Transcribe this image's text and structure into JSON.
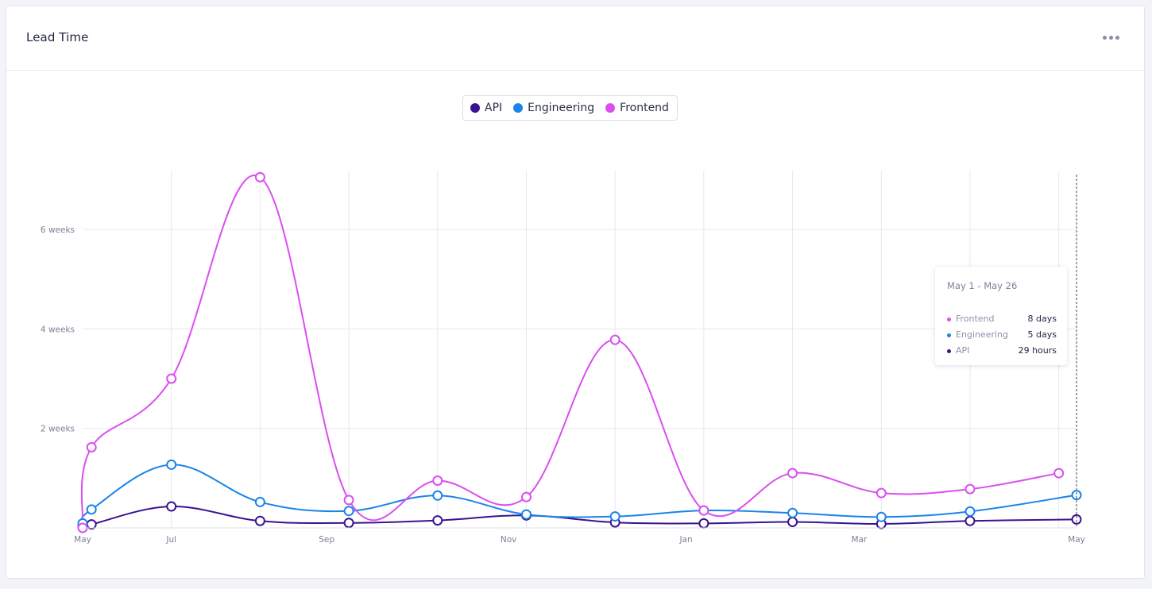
{
  "panel": {
    "title": "Lead Time",
    "menu_icon": "more-horizontal-icon"
  },
  "colors": {
    "API": "#3a138f",
    "Engineering": "#1a84ea",
    "Frontend": "#db4ef0",
    "grid": "#e7e8ee",
    "axis_text": "#7b7f98"
  },
  "legend": [
    {
      "name": "API",
      "color": "#3a138f"
    },
    {
      "name": "Engineering",
      "color": "#1a84ea"
    },
    {
      "name": "Frontend",
      "color": "#db4ef0"
    }
  ],
  "tooltip": {
    "title": "May 1 - May 26",
    "rows": [
      {
        "name": "Frontend",
        "value": "8 days",
        "color": "#db4ef0"
      },
      {
        "name": "Engineering",
        "value": "5 days",
        "color": "#1a84ea"
      },
      {
        "name": "API",
        "value": "29 hours",
        "color": "#3a138f"
      }
    ]
  },
  "chart_data": {
    "type": "line",
    "title": "Lead Time",
    "x_ticks": [
      "May",
      "Jul",
      "Sep",
      "Nov",
      "Jan",
      "Mar",
      "May"
    ],
    "y_ticks": [
      "2 weeks",
      "4 weeks",
      "6 weeks"
    ],
    "y_unit": "weeks",
    "ylim": [
      0,
      7.2
    ],
    "grid": true,
    "legend_position": "top-center",
    "x": [
      0,
      0.2,
      2.0,
      4.0,
      6.0,
      8.0,
      10.0,
      12.0,
      14.0,
      16.0,
      18.0,
      20.0,
      22.0,
      22.4
    ],
    "series": [
      {
        "name": "Frontend",
        "values": [
          0.0,
          1.62,
          3.0,
          7.05,
          0.56,
          0.95,
          0.62,
          3.78,
          0.35,
          1.1,
          0.7,
          0.78,
          1.1,
          null
        ]
      },
      {
        "name": "Engineering",
        "values": [
          0.09,
          0.37,
          1.27,
          0.52,
          0.34,
          0.65,
          0.27,
          0.23,
          0.35,
          0.3,
          0.22,
          0.33,
          null,
          0.66
        ]
      },
      {
        "name": "API",
        "values": [
          0.03,
          0.07,
          0.43,
          0.14,
          0.1,
          0.15,
          0.25,
          0.11,
          0.09,
          0.12,
          0.08,
          0.14,
          null,
          0.17
        ]
      }
    ]
  }
}
